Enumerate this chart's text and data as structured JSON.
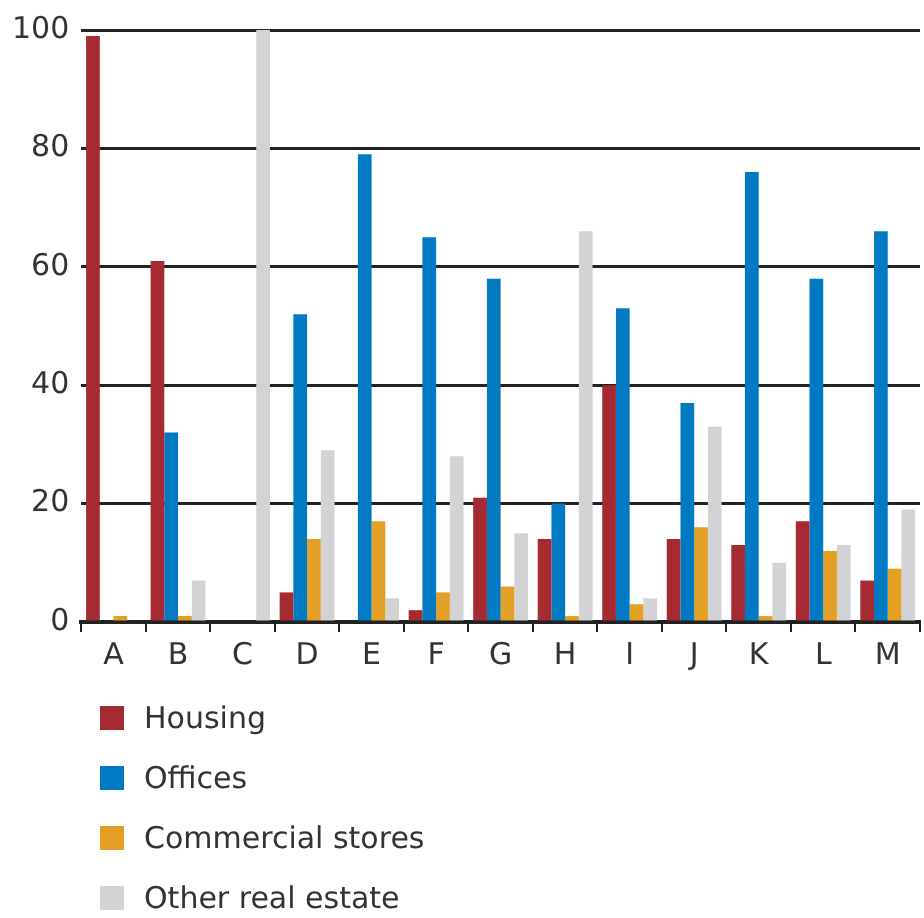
{
  "chart_data": {
    "type": "bar",
    "categories": [
      "A",
      "B",
      "C",
      "D",
      "E",
      "F",
      "G",
      "H",
      "I",
      "J",
      "K",
      "L",
      "M"
    ],
    "series": [
      {
        "name": "Housing",
        "color": "#a62a32",
        "values": [
          99,
          61,
          0,
          5,
          0,
          2,
          21,
          14,
          40,
          14,
          13,
          17,
          7
        ]
      },
      {
        "name": "Offices",
        "color": "#007ac3",
        "values": [
          0,
          32,
          0,
          52,
          79,
          65,
          58,
          20,
          53,
          37,
          76,
          58,
          66
        ]
      },
      {
        "name": "Commercial stores",
        "color": "#e3a024",
        "values": [
          1,
          1,
          0,
          14,
          17,
          5,
          6,
          1,
          3,
          16,
          1,
          12,
          9
        ]
      },
      {
        "name": "Other real estate",
        "color": "#d3d3d5",
        "values": [
          0,
          7,
          100,
          29,
          4,
          28,
          15,
          66,
          4,
          33,
          10,
          13,
          19
        ]
      }
    ],
    "ylim": [
      0,
      100
    ],
    "yticks": [
      0,
      20,
      40,
      60,
      80,
      100
    ],
    "grid": "y",
    "legend": "bottom"
  }
}
